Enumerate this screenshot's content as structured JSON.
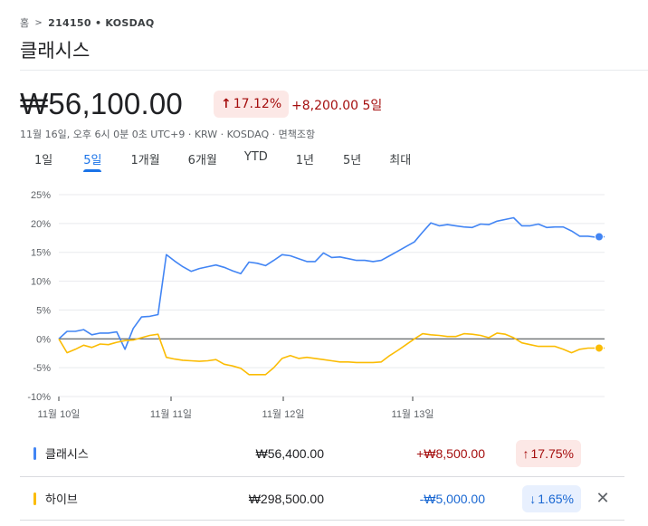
{
  "breadcrumb": {
    "home": "홈",
    "separator": ">",
    "code": "214150 • KOSDAQ"
  },
  "company_name": "클래시스",
  "price": "₩56,100.00",
  "change_badge": {
    "arrow": "↑",
    "percent": "17.12%"
  },
  "change_text": "+8,200.00 5일",
  "meta": "11월 16일, 오후 6시 0분 0초 UTC+9 · KRW · KOSDAQ · 면책조항",
  "tabs": [
    "1일",
    "5일",
    "1개월",
    "6개월",
    "YTD",
    "1년",
    "5년",
    "최대"
  ],
  "active_tab": "5일",
  "colors": {
    "blue": "#4285f4",
    "yellow": "#fbbc04",
    "up": "#a50e0e",
    "down": "#1967d2"
  },
  "chart_data": {
    "type": "line",
    "y_tick_labels": [
      "25%",
      "20%",
      "15%",
      "10%",
      "5%",
      "0%",
      "-5%",
      "-10%"
    ],
    "x_tick_labels": [
      "11월 10일",
      "11월 11일",
      "11월 12일",
      "11월 13일"
    ],
    "ylim": [
      -10,
      25
    ],
    "grid": true,
    "zero_line": true,
    "series": [
      {
        "name": "클래시스",
        "color": "#4285f4",
        "values": [
          0,
          1.3,
          1.3,
          1.6,
          0.7,
          1.0,
          1.0,
          1.2,
          -1.8,
          1.8,
          3.8,
          3.9,
          4.2,
          14.6,
          13.5,
          12.5,
          11.7,
          12.2,
          12.5,
          12.8,
          12.4,
          11.8,
          11.3,
          13.3,
          13.1,
          12.7,
          13.6,
          14.6,
          14.4,
          13.9,
          13.4,
          13.4,
          14.9,
          14.1,
          14.2,
          13.9,
          13.6,
          13.6,
          13.4,
          13.6,
          14.4,
          15.2,
          16.0,
          16.8,
          18.5,
          20.1,
          19.6,
          19.8,
          19.6,
          19.4,
          19.3,
          19.9,
          19.8,
          20.4,
          20.7,
          21.0,
          19.6,
          19.6,
          19.9,
          19.3,
          19.4,
          19.4,
          18.7,
          17.8,
          17.8,
          17.6,
          17.7
        ]
      },
      {
        "name": "하이브",
        "color": "#fbbc04",
        "values": [
          0,
          -2.4,
          -1.8,
          -1.1,
          -1.5,
          -0.9,
          -1.0,
          -0.6,
          -0.3,
          -0.2,
          0.2,
          0.6,
          0.8,
          -3.2,
          -3.5,
          -3.7,
          -3.8,
          -3.9,
          -3.8,
          -3.6,
          -4.4,
          -4.7,
          -5.1,
          -6.2,
          -6.2,
          -6.2,
          -5.0,
          -3.4,
          -2.9,
          -3.4,
          -3.2,
          -3.4,
          -3.6,
          -3.8,
          -4.0,
          -4.0,
          -4.1,
          -4.1,
          -4.1,
          -4.0,
          -2.9,
          -2.0,
          -1.0,
          0.0,
          0.9,
          0.7,
          0.6,
          0.4,
          0.4,
          0.9,
          0.8,
          0.6,
          0.2,
          1.0,
          0.8,
          0.2,
          -0.7,
          -1.0,
          -1.3,
          -1.3,
          -1.3,
          -1.8,
          -2.4,
          -1.8,
          -1.6,
          -1.6,
          -1.6
        ]
      }
    ]
  },
  "comparisons": [
    {
      "name": "클래시스",
      "price": "₩56,400.00",
      "change": "+₩8,500.00",
      "direction": "up",
      "arrow": "↑",
      "percent": "17.75%"
    },
    {
      "name": "하이브",
      "price": "₩298,500.00",
      "change": "-₩5,000.00",
      "direction": "down",
      "arrow": "↓",
      "percent": "1.65%",
      "close": "✕"
    }
  ]
}
